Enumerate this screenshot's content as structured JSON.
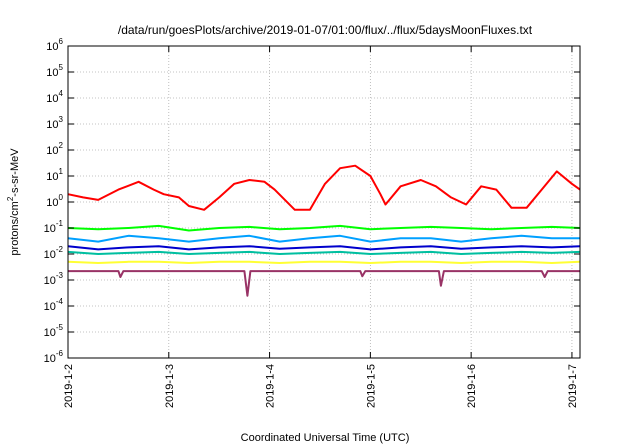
{
  "chart_data": {
    "type": "line",
    "title": "/data/run/goesPlots/archive/2019-01-07/01:00/flux/../flux/5daysMoonFluxes.txt",
    "xlabel": "Coordinated Universal Time (UTC)",
    "ylabel_parts": [
      "protons/cm",
      "2",
      "-s-sr-MeV"
    ],
    "y_scale": "log",
    "ylim_exp": [
      -6,
      6
    ],
    "y_ticks": [
      {
        "base": "10",
        "exp": "-6"
      },
      {
        "base": "10",
        "exp": "-5"
      },
      {
        "base": "10",
        "exp": "-4"
      },
      {
        "base": "10",
        "exp": "-3"
      },
      {
        "base": "10",
        "exp": "-2"
      },
      {
        "base": "10",
        "exp": "-1"
      },
      {
        "base": "10",
        "exp": "0"
      },
      {
        "base": "10",
        "exp": "1"
      },
      {
        "base": "10",
        "exp": "2"
      },
      {
        "base": "10",
        "exp": "3"
      },
      {
        "base": "10",
        "exp": "4"
      },
      {
        "base": "10",
        "exp": "5"
      },
      {
        "base": "10",
        "exp": "6"
      }
    ],
    "x_ticks": [
      "2019-1-2",
      "2019-1-3",
      "2019-1-4",
      "2019-1-5",
      "2019-1-6",
      "2019-1-7"
    ],
    "x_tick_days": [
      0,
      1,
      2,
      3,
      4,
      5
    ],
    "xlim_days": [
      0,
      5.08
    ],
    "grid": true,
    "series": [
      {
        "color": "#ff0000",
        "x": [
          0,
          0.15,
          0.3,
          0.5,
          0.7,
          0.85,
          0.95,
          1.1,
          1.2,
          1.35,
          1.5,
          1.65,
          1.8,
          1.95,
          2.05,
          2.25,
          2.4,
          2.55,
          2.7,
          2.85,
          3.0,
          3.1,
          3.15,
          3.3,
          3.5,
          3.65,
          3.8,
          3.95,
          4.1,
          4.25,
          4.4,
          4.55,
          4.7,
          4.85,
          5.0,
          5.08
        ],
        "y": [
          2,
          1.5,
          1.2,
          3,
          6,
          3,
          2,
          1.5,
          0.7,
          0.5,
          1.5,
          5,
          7,
          6,
          3,
          0.5,
          0.5,
          5,
          20,
          25,
          10,
          2,
          0.8,
          4,
          7,
          4,
          1.5,
          0.8,
          4,
          3,
          0.6,
          0.6,
          3,
          15,
          5,
          3
        ]
      },
      {
        "color": "#00ff00",
        "x": [
          0,
          0.3,
          0.6,
          0.9,
          1.2,
          1.5,
          1.8,
          2.1,
          2.4,
          2.7,
          3.0,
          3.3,
          3.6,
          3.9,
          4.2,
          4.5,
          4.8,
          5.08
        ],
        "y": [
          0.1,
          0.09,
          0.1,
          0.12,
          0.08,
          0.1,
          0.11,
          0.09,
          0.1,
          0.12,
          0.09,
          0.1,
          0.11,
          0.1,
          0.09,
          0.1,
          0.11,
          0.1
        ]
      },
      {
        "color": "#00a0ff",
        "x": [
          0,
          0.3,
          0.6,
          0.9,
          1.2,
          1.5,
          1.8,
          2.1,
          2.4,
          2.7,
          3.0,
          3.3,
          3.6,
          3.9,
          4.2,
          4.5,
          4.8,
          5.08
        ],
        "y": [
          0.04,
          0.03,
          0.05,
          0.04,
          0.03,
          0.04,
          0.05,
          0.03,
          0.04,
          0.05,
          0.03,
          0.04,
          0.04,
          0.03,
          0.04,
          0.05,
          0.04,
          0.04
        ]
      },
      {
        "color": "#0000cc",
        "x": [
          0,
          0.3,
          0.6,
          0.9,
          1.2,
          1.5,
          1.8,
          2.1,
          2.4,
          2.7,
          3.0,
          3.3,
          3.6,
          3.9,
          4.2,
          4.5,
          4.8,
          5.08
        ],
        "y": [
          0.02,
          0.015,
          0.018,
          0.02,
          0.015,
          0.018,
          0.02,
          0.016,
          0.018,
          0.02,
          0.015,
          0.018,
          0.02,
          0.016,
          0.018,
          0.02,
          0.018,
          0.02
        ]
      },
      {
        "color": "#00bfa0",
        "x": [
          0,
          0.3,
          0.6,
          0.9,
          1.2,
          1.5,
          1.8,
          2.1,
          2.4,
          2.7,
          3.0,
          3.3,
          3.6,
          3.9,
          4.2,
          4.5,
          4.8,
          5.08
        ],
        "y": [
          0.012,
          0.01,
          0.011,
          0.012,
          0.01,
          0.011,
          0.012,
          0.01,
          0.011,
          0.012,
          0.01,
          0.011,
          0.012,
          0.01,
          0.011,
          0.012,
          0.011,
          0.012
        ]
      },
      {
        "color": "#ffff33",
        "x": [
          0,
          0.3,
          0.6,
          0.9,
          1.2,
          1.5,
          1.8,
          2.1,
          2.4,
          2.7,
          3.0,
          3.3,
          3.6,
          3.9,
          4.2,
          4.5,
          4.8,
          5.08
        ],
        "y": [
          0.005,
          0.0045,
          0.005,
          0.005,
          0.0045,
          0.005,
          0.005,
          0.0045,
          0.005,
          0.005,
          0.0045,
          0.005,
          0.005,
          0.0045,
          0.005,
          0.005,
          0.0045,
          0.005
        ]
      },
      {
        "color": "#993366",
        "x": [
          0,
          0.2,
          0.5,
          0.52,
          0.55,
          0.8,
          1.1,
          1.4,
          1.75,
          1.78,
          1.81,
          2.1,
          2.4,
          2.7,
          2.9,
          2.92,
          2.95,
          3.1,
          3.4,
          3.68,
          3.7,
          3.73,
          4.0,
          4.3,
          4.6,
          4.7,
          4.73,
          4.76,
          5.08
        ],
        "y": [
          0.0022,
          0.0022,
          0.0022,
          0.0013,
          0.0022,
          0.0022,
          0.0022,
          0.0022,
          0.0022,
          0.00025,
          0.0022,
          0.0022,
          0.0022,
          0.0022,
          0.0022,
          0.0014,
          0.0022,
          0.0022,
          0.0022,
          0.0022,
          0.0006,
          0.0022,
          0.0022,
          0.0022,
          0.0022,
          0.0022,
          0.0013,
          0.0022,
          0.0022
        ]
      }
    ]
  }
}
